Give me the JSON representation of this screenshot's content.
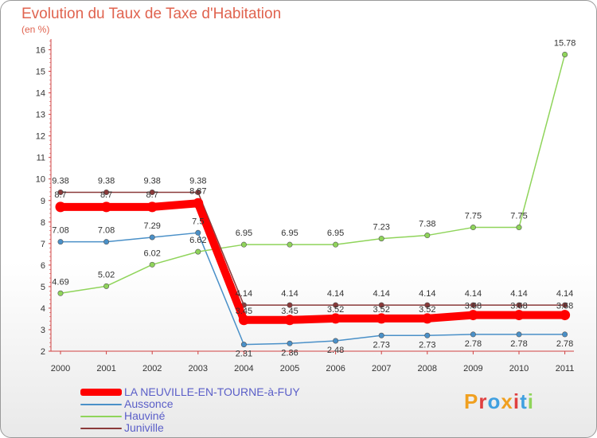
{
  "chart_data": {
    "type": "line",
    "title": "Evolution du Taux de Taxe d'Habitation",
    "subtitle": "(en %)",
    "x": [
      "2000",
      "2001",
      "2002",
      "2003",
      "2004",
      "2005",
      "2006",
      "2007",
      "2008",
      "2009",
      "2010",
      "2011"
    ],
    "ylim": [
      2,
      16.5
    ],
    "yticks": [
      "2",
      "3",
      "4",
      "5",
      "6",
      "7",
      "8",
      "9",
      "10",
      "11",
      "12",
      "13",
      "14",
      "15",
      "16"
    ],
    "series": [
      {
        "name": "LA NEUVILLE-EN-TOURNE-à-FUY",
        "color": "#ff0000",
        "values": [
          8.7,
          8.7,
          8.7,
          8.87,
          3.45,
          3.45,
          3.52,
          3.52,
          3.52,
          3.68,
          3.68,
          3.68
        ],
        "labels": [
          "8.7",
          "8.7",
          "8.7",
          "8.87",
          "3.45",
          "3.45",
          "3.52",
          "3.52",
          "3.52",
          "3.68",
          "3.68",
          "3.68"
        ]
      },
      {
        "name": "Aussonce",
        "color": "#4a90c8",
        "values": [
          7.08,
          7.08,
          7.29,
          7.5,
          2.31,
          2.36,
          2.48,
          2.73,
          2.73,
          2.78,
          2.78,
          2.78
        ],
        "labels": [
          "7.08",
          "7.08",
          "7.29",
          "7.5",
          "2.31",
          "2.36",
          "2.48",
          "2.73",
          "2.73",
          "2.78",
          "2.78",
          "2.78"
        ]
      },
      {
        "name": "Hauviné",
        "color": "#8fd45a",
        "values": [
          4.69,
          5.02,
          6.02,
          6.62,
          6.95,
          6.95,
          6.95,
          7.23,
          7.38,
          7.75,
          7.75,
          15.78
        ],
        "labels": [
          "4.69",
          "5.02",
          "6.02",
          "6.62",
          "6.95",
          "6.95",
          "6.95",
          "7.23",
          "7.38",
          "7.75",
          "7.75",
          "15.78"
        ]
      },
      {
        "name": "Juniville",
        "color": "#8b3a3a",
        "values": [
          9.38,
          9.38,
          9.38,
          9.38,
          4.14,
          4.14,
          4.14,
          4.14,
          4.14,
          4.14,
          4.14,
          4.14
        ],
        "labels": [
          "9.38",
          "9.38",
          "9.38",
          "9.38",
          "4.14",
          "4.14",
          "4.14",
          "4.14",
          "4.14",
          "4.14",
          "4.14",
          "4.14"
        ]
      }
    ]
  },
  "logo": {
    "letters": [
      "P",
      "r",
      "o",
      "x",
      "i",
      "t",
      "i"
    ],
    "colors": [
      "#f0a020",
      "#e04040",
      "#40a0e0",
      "#f0a020",
      "#e04040",
      "#40a0e0",
      "#8fd45a"
    ]
  }
}
